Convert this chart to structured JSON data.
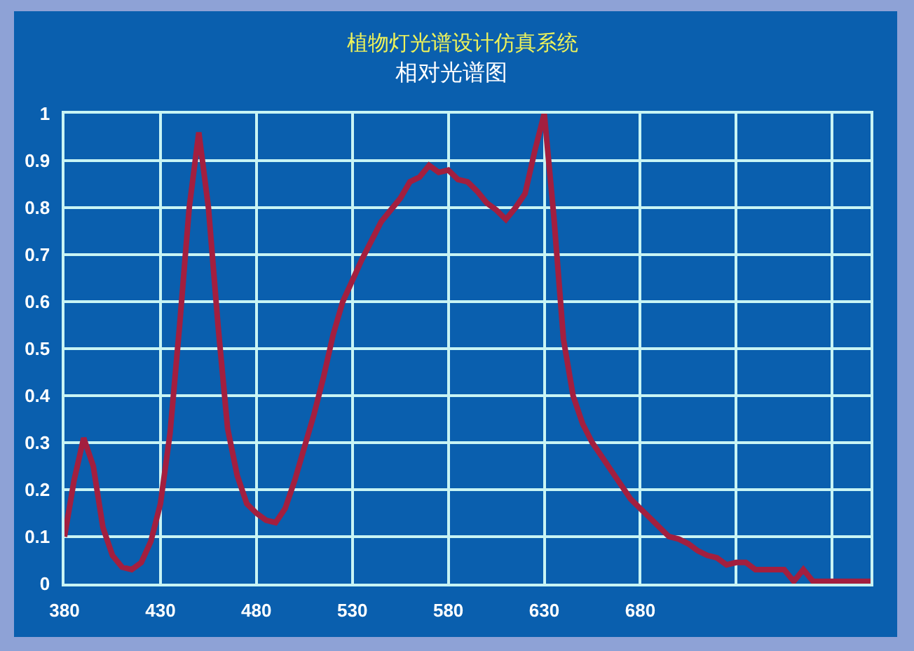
{
  "chart_data": {
    "type": "line",
    "title": "植物灯光谱设计仿真系统",
    "subtitle": "相对光谱图",
    "x": [
      380,
      385,
      390,
      395,
      400,
      405,
      410,
      415,
      420,
      425,
      430,
      435,
      440,
      445,
      450,
      455,
      460,
      465,
      470,
      475,
      480,
      485,
      490,
      495,
      500,
      505,
      510,
      515,
      520,
      525,
      530,
      535,
      540,
      545,
      550,
      555,
      560,
      565,
      570,
      575,
      580,
      585,
      590,
      595,
      600,
      605,
      610,
      615,
      620,
      625,
      630,
      635,
      640,
      645,
      650,
      655,
      660,
      665,
      670,
      675,
      680,
      685,
      690,
      695,
      700,
      705,
      710,
      715,
      720,
      725,
      730,
      735,
      740,
      745,
      750,
      755,
      760,
      765,
      770,
      775,
      780,
      785,
      790,
      795,
      800
    ],
    "values": [
      0.1,
      0.22,
      0.31,
      0.25,
      0.12,
      0.06,
      0.035,
      0.03,
      0.045,
      0.09,
      0.17,
      0.32,
      0.55,
      0.8,
      0.96,
      0.8,
      0.55,
      0.33,
      0.23,
      0.17,
      0.15,
      0.135,
      0.13,
      0.16,
      0.22,
      0.29,
      0.36,
      0.44,
      0.53,
      0.6,
      0.645,
      0.69,
      0.73,
      0.77,
      0.795,
      0.82,
      0.855,
      0.865,
      0.89,
      0.875,
      0.88,
      0.86,
      0.855,
      0.835,
      0.81,
      0.795,
      0.775,
      0.8,
      0.83,
      0.92,
      1,
      0.78,
      0.52,
      0.4,
      0.34,
      0.3,
      0.27,
      0.24,
      0.21,
      0.18,
      0.16,
      0.14,
      0.12,
      0.1,
      0.095,
      0.085,
      0.07,
      0.06,
      0.055,
      0.04,
      0.045,
      0.045,
      0.03,
      0.03,
      0.03,
      0.03,
      0.005,
      0.03,
      0.005,
      0.005,
      0.005,
      0.005,
      0.005,
      0.005,
      0.005
    ],
    "color": "#a31f3f",
    "line_style": "solid",
    "xlim": [
      380,
      800
    ],
    "xticks": [
      380,
      430,
      480,
      530,
      580,
      630,
      680,
      {
        "value": 730,
        "label": null
      },
      {
        "value": 780,
        "label": null
      }
    ],
    "ylim": [
      0,
      1
    ],
    "yticks": [
      0,
      0.1,
      0.2,
      0.3,
      0.4,
      0.5,
      0.6,
      0.7,
      0.8,
      0.9,
      1
    ],
    "grid": true
  }
}
